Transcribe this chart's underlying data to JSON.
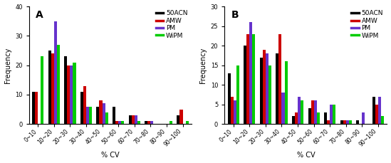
{
  "categories": [
    "0~10",
    "10~20",
    "20~30",
    "30~40",
    "40~50",
    "50~60",
    "60~70",
    "70~80",
    "80~90",
    "90~100"
  ],
  "panel_A": {
    "title": "A",
    "ylim": [
      0,
      40
    ],
    "yticks": [
      0,
      10,
      20,
      30,
      40
    ],
    "data": {
      "50ACN": [
        11,
        25,
        23,
        11,
        6,
        6,
        3,
        1,
        0,
        3
      ],
      "AMW": [
        11,
        24,
        20,
        13,
        8,
        1,
        3,
        1,
        0,
        5
      ],
      "PM": [
        0,
        35,
        20,
        6,
        7,
        1,
        3,
        1,
        0,
        0
      ],
      "WiPM": [
        23,
        27,
        21,
        6,
        4,
        1,
        1,
        0,
        1,
        1
      ]
    }
  },
  "panel_B": {
    "title": "B",
    "ylim": [
      0,
      30
    ],
    "yticks": [
      0,
      5,
      10,
      15,
      20,
      25,
      30
    ],
    "data": {
      "50ACN": [
        13,
        20,
        17,
        18,
        2,
        4,
        3,
        1,
        1,
        7
      ],
      "AMW": [
        7,
        23,
        19,
        23,
        3,
        6,
        1,
        1,
        0,
        5
      ],
      "PM": [
        6,
        26,
        18,
        8,
        7,
        6,
        5,
        1,
        3,
        7
      ],
      "WiPM": [
        15,
        23,
        15,
        16,
        6,
        3,
        5,
        1,
        0,
        2
      ]
    }
  },
  "colors": {
    "50ACN": "#000000",
    "AMW": "#cc0000",
    "PM": "#6633cc",
    "WiPM": "#00cc00"
  },
  "legend_order": [
    "50ACN",
    "AMW",
    "PM",
    "WiPM"
  ],
  "xlabel": "% CV",
  "ylabel": "Frequency",
  "bar_width": 0.18,
  "label_fontsize": 7,
  "tick_fontsize": 5.5,
  "title_fontsize": 10,
  "legend_fontsize": 6.5
}
